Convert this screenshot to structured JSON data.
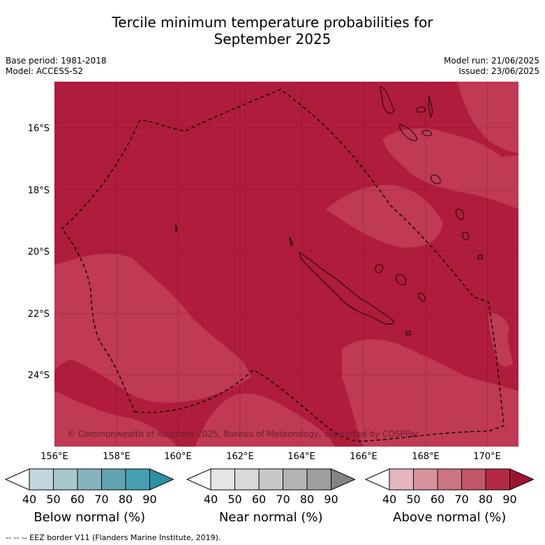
{
  "title_line1": "Tercile minimum temperature probabilities for",
  "title_line2": "September 2025",
  "base_period": "Base period: 1981-2018",
  "model": "Model: ACCESS-S2",
  "model_run": "Model run: 21/06/2025",
  "issued": "Issued: 23/06/2025",
  "lat_labels": [
    "16°S",
    "18°S",
    "20°S",
    "22°S",
    "24°S"
  ],
  "lon_labels": [
    "156°E",
    "158°E",
    "160°E",
    "162°E",
    "164°E",
    "166°E",
    "168°E",
    "170°E"
  ],
  "copyright": "© Commonwealth of Australia 2025, Bureau of Meteorology, supported by COSPPac",
  "colorbars": [
    {
      "title": "Below normal (%)",
      "ticks": [
        "40",
        "50",
        "60",
        "70",
        "80",
        "90"
      ],
      "colors": [
        "#c0d6dc",
        "#a6c7cd",
        "#86b3bd",
        "#62a2b0",
        "#44a0b0",
        "#2e8fa3"
      ]
    },
    {
      "title": "Near normal (%)",
      "ticks": [
        "40",
        "50",
        "60",
        "70",
        "80",
        "90"
      ],
      "colors": [
        "#e6e6e6",
        "#d9d9d9",
        "#c8c8c8",
        "#b4b4b4",
        "#9e9e9e",
        "#858585"
      ]
    },
    {
      "title": "Above normal (%)",
      "ticks": [
        "40",
        "50",
        "60",
        "70",
        "80",
        "90"
      ],
      "colors": [
        "#e3b6be",
        "#d9939e",
        "#cc7480",
        "#c25666",
        "#b42a43",
        "#9b1531"
      ]
    }
  ],
  "footnote": "--  --  -- EEZ border V11 (Flanders Marine Institute, 2019).",
  "colors": {
    "above_80": "#b01c3b",
    "above_70": "#bf3a52"
  }
}
